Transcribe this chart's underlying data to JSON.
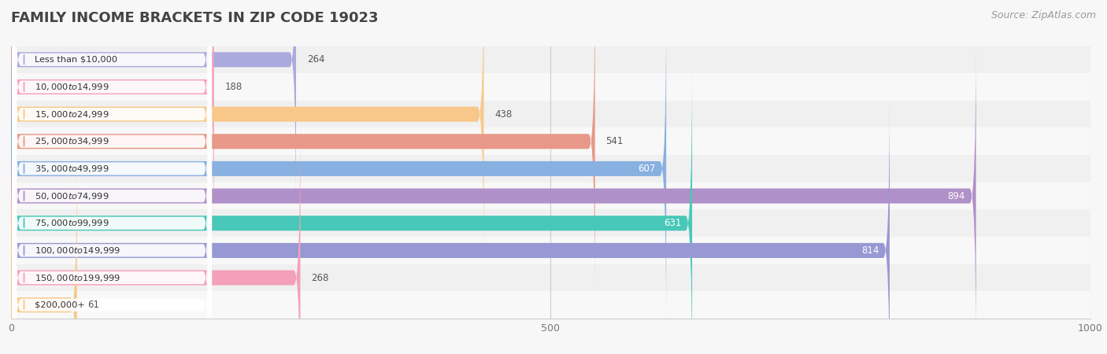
{
  "title": "FAMILY INCOME BRACKETS IN ZIP CODE 19023",
  "source": "Source: ZipAtlas.com",
  "categories": [
    "Less than $10,000",
    "$10,000 to $14,999",
    "$15,000 to $24,999",
    "$25,000 to $34,999",
    "$35,000 to $49,999",
    "$50,000 to $74,999",
    "$75,000 to $99,999",
    "$100,000 to $149,999",
    "$150,000 to $199,999",
    "$200,000+"
  ],
  "values": [
    264,
    188,
    438,
    541,
    607,
    894,
    631,
    814,
    268,
    61
  ],
  "bar_colors": [
    "#aaaadd",
    "#f4a0b8",
    "#f8c88a",
    "#e89888",
    "#88b0e0",
    "#b090c8",
    "#48c8b8",
    "#9898d4",
    "#f4a0b8",
    "#f8c88a"
  ],
  "xlim": [
    0,
    1000
  ],
  "xticks": [
    0,
    500,
    1000
  ],
  "background_color": "#f7f7f7",
  "row_bg_color": "#efefef",
  "row_bg_light": "#f9f9f9",
  "title_fontsize": 13,
  "source_fontsize": 9,
  "bar_height": 0.55,
  "value_inside_threshold": 550,
  "label_pill_color": "#ffffff"
}
